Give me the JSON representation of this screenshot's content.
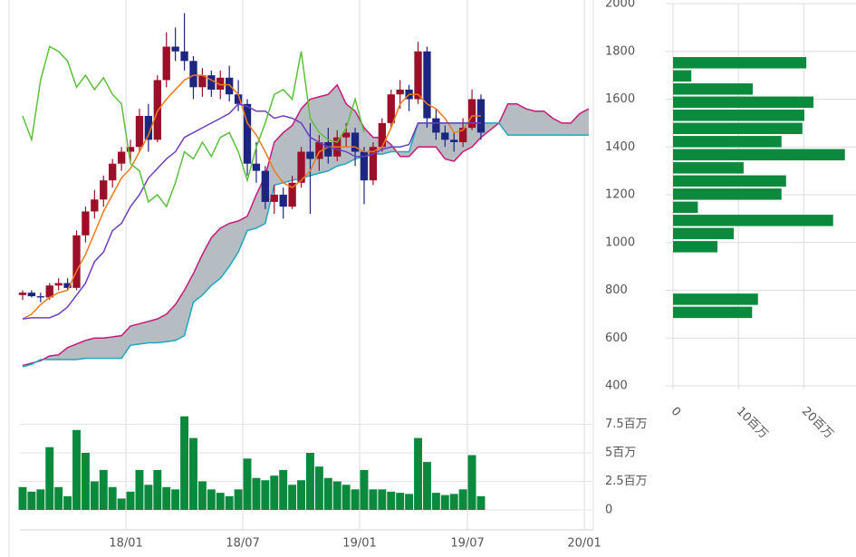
{
  "chart_data": [
    {
      "type": "candlestick",
      "x": [
        0,
        2,
        4,
        6,
        8,
        10,
        12,
        14,
        16,
        18,
        20,
        22,
        24,
        26,
        28,
        30,
        32,
        34,
        36,
        38,
        40,
        42,
        44,
        46,
        48,
        50,
        52,
        54,
        56,
        58,
        60,
        62,
        64,
        66,
        68,
        70,
        72,
        74,
        76,
        78,
        80,
        82,
        84,
        86,
        88,
        90,
        92,
        94,
        96,
        98,
        100,
        102
      ],
      "open": [
        780,
        790,
        775,
        770,
        820,
        830,
        810,
        1030,
        1130,
        1180,
        1260,
        1330,
        1380,
        1400,
        1530,
        1430,
        1680,
        1820,
        1800,
        1760,
        1650,
        1700,
        1640,
        1690,
        1620,
        1580,
        1330,
        1300,
        1170,
        1200,
        1150,
        1250,
        1380,
        1350,
        1420,
        1360,
        1440,
        1460,
        1380,
        1260,
        1400,
        1500,
        1620,
        1640,
        1600,
        1800,
        1520,
        1460,
        1430,
        1420,
        1480,
        1600
      ],
      "high": [
        800,
        800,
        790,
        830,
        850,
        850,
        1050,
        1150,
        1220,
        1280,
        1350,
        1400,
        1430,
        1560,
        1580,
        1700,
        1880,
        1900,
        1960,
        1780,
        1730,
        1720,
        1720,
        1740,
        1680,
        1600,
        1420,
        1320,
        1240,
        1230,
        1280,
        1400,
        1500,
        1450,
        1480,
        1470,
        1500,
        1480,
        1400,
        1420,
        1520,
        1640,
        1680,
        1660,
        1840,
        1820,
        1560,
        1490,
        1460,
        1520,
        1640,
        1620
      ],
      "low": [
        760,
        770,
        750,
        760,
        800,
        800,
        800,
        1000,
        1100,
        1150,
        1230,
        1300,
        1340,
        1380,
        1380,
        1420,
        1650,
        1760,
        1720,
        1600,
        1610,
        1610,
        1600,
        1590,
        1550,
        1280,
        1250,
        1140,
        1120,
        1100,
        1140,
        1230,
        1120,
        1300,
        1330,
        1340,
        1400,
        1320,
        1160,
        1240,
        1380,
        1480,
        1560,
        1550,
        1580,
        1480,
        1430,
        1400,
        1380,
        1400,
        1470,
        1430
      ],
      "close": [
        790,
        775,
        770,
        820,
        830,
        810,
        1030,
        1130,
        1180,
        1260,
        1330,
        1380,
        1400,
        1530,
        1430,
        1680,
        1820,
        1800,
        1760,
        1650,
        1700,
        1640,
        1690,
        1620,
        1580,
        1330,
        1300,
        1170,
        1200,
        1150,
        1250,
        1380,
        1350,
        1420,
        1360,
        1440,
        1460,
        1380,
        1260,
        1400,
        1500,
        1620,
        1640,
        1600,
        1800,
        1520,
        1460,
        1430,
        1420,
        1480,
        1600,
        1460
      ],
      "up_color": "#9b1028",
      "down_color": "#1c2580",
      "overlays": [
        {
          "color": "#f07a1a",
          "x": [
            0,
            2,
            4,
            6,
            8,
            10,
            12,
            14,
            16,
            18,
            20,
            22,
            24,
            26,
            28,
            30,
            32,
            34,
            36,
            38,
            40,
            42,
            44,
            46,
            48,
            50,
            52,
            54,
            56,
            58,
            60,
            62,
            64,
            66,
            68,
            70,
            72,
            74,
            76,
            78,
            80,
            82,
            84,
            86,
            88,
            90,
            92,
            94,
            96,
            98,
            100,
            102
          ],
          "values": [
            680,
            700,
            740,
            770,
            790,
            800,
            880,
            950,
            1040,
            1130,
            1200,
            1270,
            1310,
            1380,
            1450,
            1550,
            1600,
            1640,
            1680,
            1700,
            1700,
            1680,
            1660,
            1660,
            1620,
            1500,
            1450,
            1380,
            1300,
            1250,
            1230,
            1260,
            1300,
            1380,
            1400,
            1400,
            1400,
            1400,
            1380,
            1380,
            1400,
            1480,
            1580,
            1620,
            1620,
            1580,
            1560,
            1520,
            1460,
            1470,
            1530,
            1530
          ]
        },
        {
          "color": "#6a3fc0",
          "x": [
            0,
            2,
            4,
            6,
            8,
            10,
            12,
            14,
            16,
            18,
            20,
            22,
            24,
            26,
            28,
            30,
            32,
            34,
            36,
            38,
            40,
            42,
            44,
            46,
            48,
            50,
            52,
            54,
            56,
            58,
            60,
            62,
            64,
            66,
            68,
            70,
            72,
            74,
            76,
            78,
            80,
            82,
            84,
            86,
            88,
            90,
            92,
            94,
            96,
            98,
            100,
            102
          ],
          "values": [
            680,
            685,
            685,
            685,
            700,
            730,
            780,
            830,
            920,
            960,
            1050,
            1080,
            1150,
            1200,
            1270,
            1310,
            1350,
            1380,
            1440,
            1460,
            1480,
            1500,
            1520,
            1540,
            1580,
            1570,
            1550,
            1550,
            1520,
            1530,
            1520,
            1500,
            1440,
            1420,
            1400,
            1390,
            1380,
            1360,
            1360,
            1370,
            1390,
            1400,
            1400,
            1410,
            1500,
            1500,
            1500,
            1500,
            1500,
            1500,
            1500,
            1500
          ]
        },
        {
          "color": "#5cbf3c",
          "x": [
            0,
            2,
            4,
            6,
            8,
            10,
            12,
            14,
            16,
            18,
            20,
            22,
            24,
            26,
            28,
            30,
            32,
            34,
            36,
            38,
            40,
            42,
            44,
            46,
            48,
            50,
            52,
            54,
            56,
            58,
            60,
            62,
            64,
            66,
            68,
            70,
            72,
            74,
            76
          ],
          "values": [
            1530,
            1430,
            1680,
            1820,
            1800,
            1760,
            1650,
            1700,
            1640,
            1690,
            1620,
            1580,
            1330,
            1300,
            1170,
            1200,
            1150,
            1250,
            1380,
            1350,
            1420,
            1360,
            1440,
            1460,
            1380,
            1260,
            1400,
            1500,
            1620,
            1640,
            1600,
            1800,
            1520,
            1460,
            1430,
            1420,
            1480,
            1600,
            1460
          ]
        }
      ],
      "cloud": {
        "fill": "#a9b1b7",
        "x": [
          0,
          2,
          4,
          6,
          8,
          10,
          12,
          14,
          16,
          18,
          20,
          22,
          24,
          26,
          28,
          30,
          32,
          34,
          36,
          38,
          40,
          42,
          44,
          46,
          48,
          50,
          52,
          54,
          56,
          58,
          60,
          62,
          64,
          66,
          68,
          70,
          72,
          74,
          76,
          78,
          80,
          82,
          84,
          86,
          88,
          90,
          92,
          94,
          96,
          98,
          100,
          102,
          104,
          106,
          108,
          110,
          112,
          114,
          116,
          118,
          120,
          122,
          124,
          126
        ],
        "series": [
          {
            "color": "#c8187a",
            "values": [
              485,
              495,
              505,
              525,
              530,
              560,
              575,
              590,
              600,
              600,
              605,
              610,
              650,
              660,
              670,
              680,
              700,
              740,
              800,
              870,
              950,
              1020,
              1060,
              1080,
              1090,
              1110,
              1200,
              1280,
              1420,
              1460,
              1490,
              1560,
              1600,
              1610,
              1620,
              1660,
              1580,
              1550,
              1480,
              1440,
              1440,
              1410,
              1360,
              1360,
              1400,
              1400,
              1400,
              1350,
              1340,
              1380,
              1400,
              1440,
              1470,
              1500,
              1580,
              1580,
              1560,
              1550,
              1550,
              1520,
              1500,
              1500,
              1540,
              1560
            ]
          },
          {
            "color": "#1fa6c0",
            "values": [
              480,
              490,
              510,
              510,
              510,
              510,
              510,
              515,
              515,
              515,
              515,
              515,
              570,
              575,
              580,
              580,
              585,
              590,
              610,
              750,
              780,
              820,
              850,
              900,
              960,
              1050,
              1060,
              1080,
              1240,
              1250,
              1260,
              1270,
              1280,
              1290,
              1300,
              1320,
              1330,
              1350,
              1360,
              1370,
              1370,
              1380,
              1380,
              1380,
              1500,
              1500,
              1500,
              1500,
              1500,
              1500,
              1500,
              1500,
              1500,
              1500,
              1450,
              1450,
              1450,
              1450,
              1450,
              1450,
              1450,
              1450,
              1450,
              1450
            ]
          }
        ]
      },
      "xlim": [
        -0.6,
        127
      ],
      "ylim": [
        400,
        2000
      ],
      "yticks": [
        400,
        600,
        800,
        1000,
        1200,
        1400,
        1600,
        1800,
        2000
      ]
    },
    {
      "type": "bar",
      "color": "#0b8a3e",
      "x": [
        0,
        2,
        4,
        6,
        8,
        10,
        12,
        14,
        16,
        18,
        20,
        22,
        24,
        26,
        28,
        30,
        32,
        34,
        36,
        38,
        40,
        42,
        44,
        46,
        48,
        50,
        52,
        54,
        56,
        58,
        60,
        62,
        64,
        66,
        68,
        70,
        72,
        74,
        76,
        78,
        80,
        82,
        84,
        86,
        88,
        90,
        92,
        94,
        96,
        98,
        100,
        102
      ],
      "values": [
        2000000,
        1600000,
        1800000,
        5500000,
        2000000,
        1200000,
        7000000,
        5000000,
        2500000,
        3500000,
        2000000,
        1000000,
        1600000,
        3500000,
        2200000,
        3500000,
        2000000,
        1800000,
        8200000,
        6300000,
        2500000,
        1800000,
        1500000,
        1200000,
        1800000,
        4500000,
        2800000,
        2600000,
        3000000,
        3500000,
        2200000,
        2600000,
        5000000,
        3800000,
        2800000,
        2500000,
        2200000,
        1800000,
        3500000,
        1800000,
        1800000,
        1600000,
        1500000,
        1400000,
        6300000,
        4200000,
        1500000,
        1300000,
        1400000,
        1800000,
        4800000,
        1200000
      ],
      "xlim": [
        -0.6,
        127
      ],
      "xticks": [
        {
          "value": 23,
          "label": "18/01"
        },
        {
          "value": 49,
          "label": "18/07"
        },
        {
          "value": 75,
          "label": "19/01"
        },
        {
          "value": 99,
          "label": "19/07"
        },
        {
          "value": 125,
          "label": "20/01"
        }
      ],
      "ylim": [
        0,
        10000000
      ],
      "yticks": [
        0,
        {
          "value": 2500000,
          "label": "2.5百万"
        },
        {
          "value": 5000000,
          "label": "5百万"
        },
        {
          "value": 7500000,
          "label": "7.5百万"
        }
      ]
    },
    {
      "type": "histogram",
      "orientation": "horizontal",
      "color": "#0b8a3e",
      "bins": [
        680,
        735,
        790,
        845,
        900,
        955,
        1010,
        1065,
        1120,
        1175,
        1230,
        1285,
        1340,
        1395,
        1450,
        1505,
        1560,
        1615,
        1670,
        1725,
        1780
      ],
      "values": [
        12100000,
        13000000,
        0,
        0,
        0,
        6800000,
        9300000,
        24500000,
        3800000,
        16600000,
        17300000,
        10800000,
        26300000,
        16600000,
        19800000,
        20100000,
        21500000,
        12200000,
        2800000,
        20400000
      ],
      "ylim": [
        400,
        2000
      ],
      "xlim": [
        0,
        28000000
      ],
      "xticks": [
        0,
        {
          "value": 10000000,
          "label": "10百万"
        },
        {
          "value": 20000000,
          "label": "20百万"
        }
      ]
    }
  ]
}
